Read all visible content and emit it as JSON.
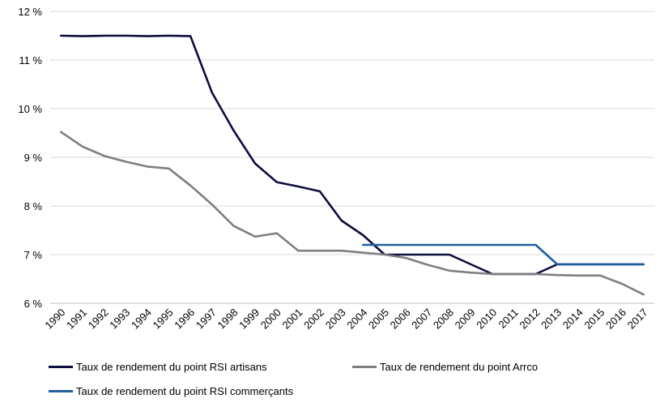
{
  "chart_data": {
    "type": "line",
    "title": "",
    "xlabel": "",
    "ylabel": "",
    "categories": [
      "1990",
      "1991",
      "1992",
      "1993",
      "1994",
      "1995",
      "1996",
      "1997",
      "1998",
      "1999",
      "2000",
      "2001",
      "2002",
      "2003",
      "2004",
      "2005",
      "2006",
      "2007",
      "2008",
      "2009",
      "2010",
      "2011",
      "2012",
      "2013",
      "2014",
      "2015",
      "2016",
      "2017"
    ],
    "yticks": [
      "6 %",
      "7 %",
      "8 %",
      "9 %",
      "10 %",
      "11 %",
      "12 %"
    ],
    "ylim": [
      6,
      12
    ],
    "grid": true,
    "legend_position": "bottom",
    "series": [
      {
        "name": "Taux de rendement du point RSI artisans",
        "color": "#0d0d3f",
        "values": [
          11.5,
          11.49,
          11.5,
          11.5,
          11.49,
          11.5,
          11.49,
          10.33,
          9.55,
          8.87,
          8.49,
          8.4,
          8.3,
          7.7,
          7.4,
          7.0,
          7.0,
          7.0,
          7.0,
          6.8,
          6.6,
          6.6,
          6.6,
          6.8,
          6.8,
          6.8,
          6.8,
          6.8
        ]
      },
      {
        "name": "Taux de rendement du point Arrco",
        "color": "#7f7f7f",
        "values": [
          9.52,
          9.22,
          9.03,
          8.91,
          8.81,
          8.77,
          8.42,
          8.03,
          7.59,
          7.37,
          7.44,
          7.08,
          7.08,
          7.08,
          7.04,
          7.0,
          6.93,
          6.79,
          6.67,
          6.63,
          6.6,
          6.6,
          6.6,
          6.58,
          6.57,
          6.57,
          6.4,
          6.18
        ]
      },
      {
        "name": "Taux de rendement du point RSI commerçants",
        "color": "#1f5f9f",
        "values": [
          null,
          null,
          null,
          null,
          null,
          null,
          null,
          null,
          null,
          null,
          null,
          null,
          null,
          null,
          7.2,
          7.2,
          7.2,
          7.2,
          7.2,
          7.2,
          7.2,
          7.2,
          7.2,
          6.8,
          6.8,
          6.8,
          6.8,
          6.8
        ]
      }
    ]
  }
}
